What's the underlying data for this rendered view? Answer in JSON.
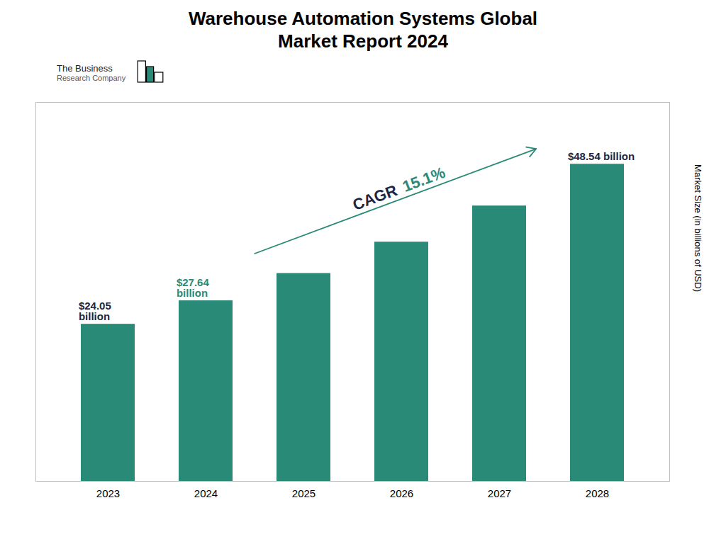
{
  "chart_data": {
    "type": "bar",
    "title": "Warehouse Automation Systems Global\nMarket Report 2024",
    "ylabel": "Market Size (in billions of USD)",
    "categories": [
      "2023",
      "2024",
      "2025",
      "2026",
      "2027",
      "2028"
    ],
    "values": [
      24.05,
      27.64,
      31.82,
      36.62,
      42.15,
      48.54
    ],
    "color": "#2a8a78",
    "ylim": [
      0,
      58
    ],
    "yticks": [],
    "grid": false,
    "tick_labels": "x",
    "data_labels": true,
    "value_labels": [
      "$24.05\nbillion",
      "$27.64\nbillion",
      null,
      null,
      null,
      "$48.54 billion"
    ],
    "value_label_colors": [
      "#1a2744",
      "#2a8a78",
      null,
      null,
      null,
      "#1a2744"
    ],
    "annotations": [
      {
        "text": "CAGR",
        "color": "#1a2744"
      },
      {
        "text": "15.1%",
        "color": "#2a8a78"
      },
      {
        "text": "The Business"
      },
      {
        "text": "Research Company"
      }
    ]
  }
}
